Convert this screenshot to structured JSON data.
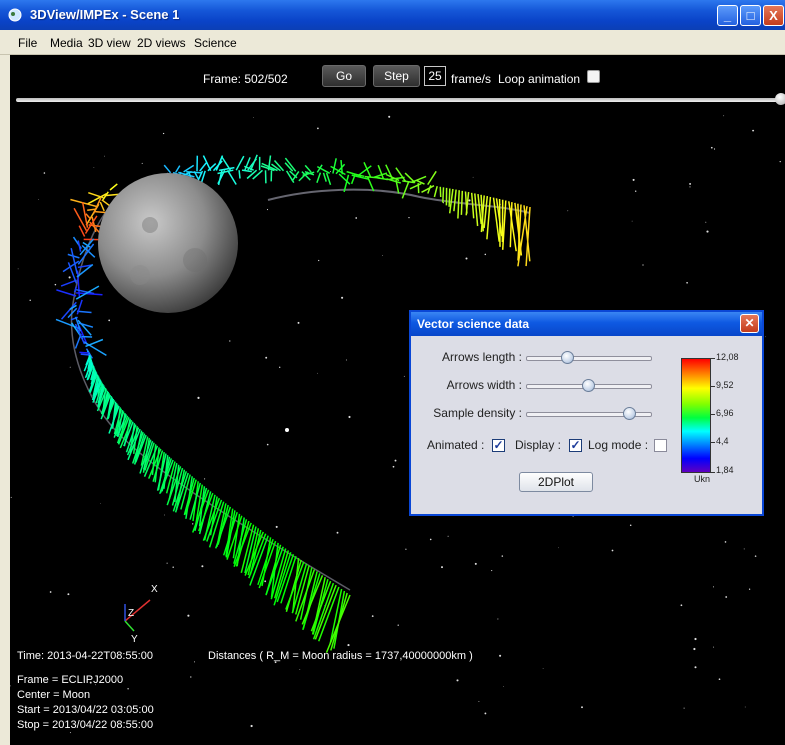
{
  "window": {
    "title": "3DView/IMPEx - Scene 1",
    "icon": "app-icon",
    "controls": [
      "minimize-icon",
      "maximize-icon",
      "close-icon"
    ]
  },
  "menu": {
    "items": [
      "File",
      "Media",
      "3D view",
      "2D views",
      "Science"
    ]
  },
  "playback": {
    "frame_label": "Frame: 502/502",
    "go_label": "Go",
    "step_label": "Step",
    "fps_value": "25",
    "fps_unit": "frame/s",
    "loop_label": "Loop animation",
    "loop_checked": false,
    "progress": 1.0
  },
  "axes": {
    "x": "X",
    "y": "Y",
    "z": "Z"
  },
  "info": {
    "time": "Time: 2013-04-22T08:55:00",
    "distances": "Distances ( R_M = Moon radius = 1737,40000000km )",
    "frame": "Frame = ECLIPJ2000",
    "center": "Center = Moon",
    "start": "Start = 2013/04/22 03:05:00",
    "stop": "Stop = 2013/04/22 08:55:00"
  },
  "dialog": {
    "title": "Vector science data",
    "arrows_length_label": "Arrows length :",
    "arrows_length_value": 0.33,
    "arrows_width_label": "Arrows width :",
    "arrows_width_value": 0.5,
    "sample_density_label": "Sample density :",
    "sample_density_value": 0.83,
    "animated_label": "Animated :",
    "animated_checked": true,
    "display_label": "Display :",
    "display_checked": true,
    "log_mode_label": "Log mode :",
    "log_mode_checked": false,
    "plot_button_label": "2DPlot",
    "colorbar": {
      "ticks": [
        "12,08",
        "9,52",
        "6,96",
        "4,4",
        "1,84"
      ],
      "unit": "Ukn"
    }
  }
}
